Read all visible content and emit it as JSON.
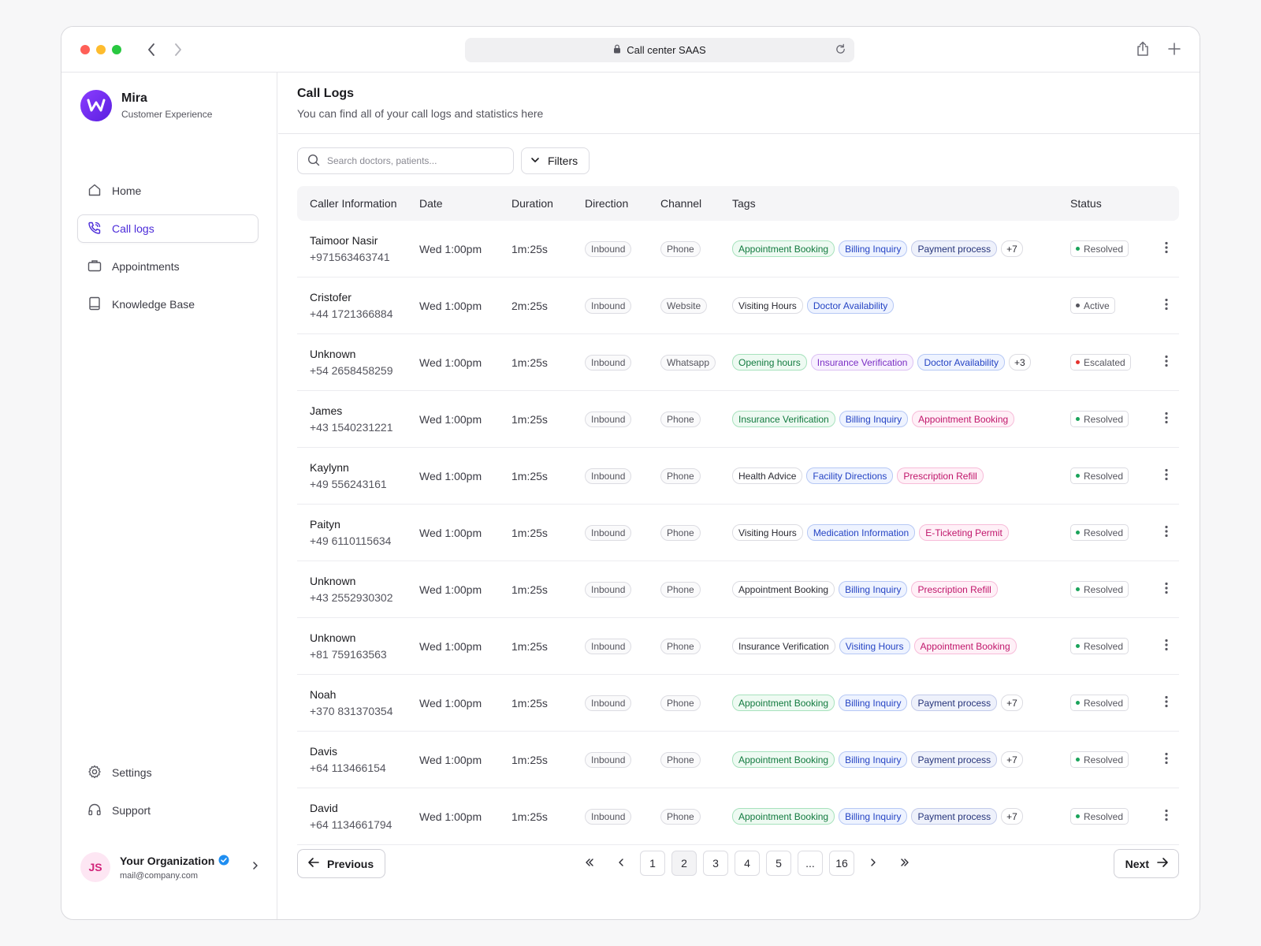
{
  "browser": {
    "url_label": "Call center SAAS",
    "traffic_lights": [
      "#ff5f57",
      "#febc2e",
      "#28c840"
    ]
  },
  "sidebar": {
    "brand_name": "Mira",
    "brand_sub": "Customer Experience",
    "nav": [
      {
        "label": "Home",
        "icon": "home-icon"
      },
      {
        "label": "Call logs",
        "icon": "phone-call-icon",
        "active": true
      },
      {
        "label": "Appointments",
        "icon": "briefcase-icon"
      },
      {
        "label": "Knowledge Base",
        "icon": "book-icon"
      }
    ],
    "bottom_nav": [
      {
        "label": "Settings",
        "icon": "gear-icon"
      },
      {
        "label": "Support",
        "icon": "headphones-icon"
      }
    ],
    "org": {
      "initials": "JS",
      "name": "Your Organization",
      "email": "mail@company.com"
    }
  },
  "main": {
    "title": "Call Logs",
    "subtitle": "You can find all of your call logs and statistics here",
    "search_placeholder": "Search doctors, patients...",
    "filters_label": "Filters"
  },
  "table": {
    "headers": {
      "caller": "Caller Information",
      "date": "Date",
      "duration": "Duration",
      "direction": "Direction",
      "channel": "Channel",
      "tags": "Tags",
      "status": "Status"
    },
    "rows": [
      {
        "name": "Taimoor Nasir",
        "phone": "+971563463741",
        "date": "Wed 1:00pm",
        "duration": "1m:25s",
        "direction": "Inbound",
        "channel": "Phone",
        "tags": [
          {
            "label": "Appointment Booking",
            "color": "green"
          },
          {
            "label": "Billing Inquiry",
            "color": "blue"
          },
          {
            "label": "Payment process",
            "color": "navy"
          },
          {
            "label": "+7",
            "color": "more"
          }
        ],
        "status": "Resolved",
        "status_color": "#1aa35a"
      },
      {
        "name": "Cristofer",
        "phone": "+44 1721366884",
        "date": "Wed 1:00pm",
        "duration": "2m:25s",
        "direction": "Inbound",
        "channel": "Website",
        "tags": [
          {
            "label": "Visiting Hours",
            "color": "gray"
          },
          {
            "label": "Doctor Availability",
            "color": "blue"
          }
        ],
        "status": "Active",
        "status_color": "#55555e"
      },
      {
        "name": "Unknown",
        "phone": "+54 2658458259",
        "date": "Wed 1:00pm",
        "duration": "1m:25s",
        "direction": "Inbound",
        "channel": "Whatsapp",
        "tags": [
          {
            "label": "Opening hours",
            "color": "green"
          },
          {
            "label": "Insurance Verification",
            "color": "purple"
          },
          {
            "label": "Doctor Availability",
            "color": "blue"
          },
          {
            "label": "+3",
            "color": "more"
          }
        ],
        "status": "Escalated",
        "status_color": "#e5322d"
      },
      {
        "name": "James",
        "phone": "+43 1540231221",
        "date": "Wed 1:00pm",
        "duration": "1m:25s",
        "direction": "Inbound",
        "channel": "Phone",
        "tags": [
          {
            "label": "Insurance Verification",
            "color": "green"
          },
          {
            "label": "Billing Inquiry",
            "color": "blue"
          },
          {
            "label": "Appointment Booking",
            "color": "pink"
          }
        ],
        "status": "Resolved",
        "status_color": "#1aa35a"
      },
      {
        "name": "Kaylynn",
        "phone": "+49 556243161",
        "date": "Wed 1:00pm",
        "duration": "1m:25s",
        "direction": "Inbound",
        "channel": "Phone",
        "tags": [
          {
            "label": "Health Advice",
            "color": "gray"
          },
          {
            "label": "Facility Directions",
            "color": "blue"
          },
          {
            "label": "Prescription Refill",
            "color": "pink"
          }
        ],
        "status": "Resolved",
        "status_color": "#1aa35a"
      },
      {
        "name": "Paityn",
        "phone": "+49 6110115634",
        "date": "Wed 1:00pm",
        "duration": "1m:25s",
        "direction": "Inbound",
        "channel": "Phone",
        "tags": [
          {
            "label": "Visiting Hours",
            "color": "gray"
          },
          {
            "label": "Medication Information",
            "color": "blue"
          },
          {
            "label": "E-Ticketing Permit",
            "color": "pink"
          }
        ],
        "status": "Resolved",
        "status_color": "#1aa35a"
      },
      {
        "name": "Unknown",
        "phone": "+43 2552930302",
        "date": "Wed 1:00pm",
        "duration": "1m:25s",
        "direction": "Inbound",
        "channel": "Phone",
        "tags": [
          {
            "label": "Appointment Booking",
            "color": "gray"
          },
          {
            "label": "Billing Inquiry",
            "color": "blue"
          },
          {
            "label": "Prescription Refill",
            "color": "pink"
          }
        ],
        "status": "Resolved",
        "status_color": "#1aa35a"
      },
      {
        "name": "Unknown",
        "phone": "+81 759163563",
        "date": "Wed 1:00pm",
        "duration": "1m:25s",
        "direction": "Inbound",
        "channel": "Phone",
        "tags": [
          {
            "label": "Insurance Verification",
            "color": "gray"
          },
          {
            "label": "Visiting Hours",
            "color": "blue"
          },
          {
            "label": "Appointment Booking",
            "color": "pink"
          }
        ],
        "status": "Resolved",
        "status_color": "#1aa35a"
      },
      {
        "name": "Noah",
        "phone": "+370 831370354",
        "date": "Wed 1:00pm",
        "duration": "1m:25s",
        "direction": "Inbound",
        "channel": "Phone",
        "tags": [
          {
            "label": "Appointment Booking",
            "color": "green"
          },
          {
            "label": "Billing Inquiry",
            "color": "blue"
          },
          {
            "label": "Payment process",
            "color": "navy"
          },
          {
            "label": "+7",
            "color": "more"
          }
        ],
        "status": "Resolved",
        "status_color": "#1aa35a"
      },
      {
        "name": "Davis",
        "phone": "+64 113466154",
        "date": "Wed 1:00pm",
        "duration": "1m:25s",
        "direction": "Inbound",
        "channel": "Phone",
        "tags": [
          {
            "label": "Appointment Booking",
            "color": "green"
          },
          {
            "label": "Billing Inquiry",
            "color": "blue"
          },
          {
            "label": "Payment process",
            "color": "navy"
          },
          {
            "label": "+7",
            "color": "more"
          }
        ],
        "status": "Resolved",
        "status_color": "#1aa35a"
      },
      {
        "name": "David",
        "phone": "+64 1134661794",
        "date": "Wed 1:00pm",
        "duration": "1m:25s",
        "direction": "Inbound",
        "channel": "Phone",
        "tags": [
          {
            "label": "Appointment Booking",
            "color": "green"
          },
          {
            "label": "Billing Inquiry",
            "color": "blue"
          },
          {
            "label": "Payment process",
            "color": "navy"
          },
          {
            "label": "+7",
            "color": "more"
          }
        ],
        "status": "Resolved",
        "status_color": "#1aa35a"
      }
    ]
  },
  "pagination": {
    "previous": "Previous",
    "next": "Next",
    "pages": [
      "1",
      "2",
      "3",
      "4",
      "5",
      "...",
      "16"
    ],
    "current": "2"
  },
  "colors": {
    "accent": "#4b2bd9",
    "verified_badge": "#1f8ef1"
  }
}
